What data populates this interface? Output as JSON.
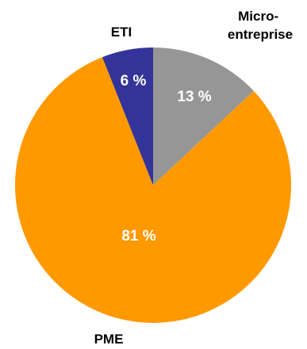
{
  "chart_data": {
    "type": "pie",
    "title": "",
    "slices": [
      {
        "category": "Micro-\nentreprise",
        "value": 13,
        "label": "13 %",
        "color": "#969696"
      },
      {
        "category": "PME",
        "value": 81,
        "label": "81 %",
        "color": "#ff9900"
      },
      {
        "category": "ETI",
        "value": 6,
        "label": "6 %",
        "color": "#333399"
      }
    ]
  }
}
